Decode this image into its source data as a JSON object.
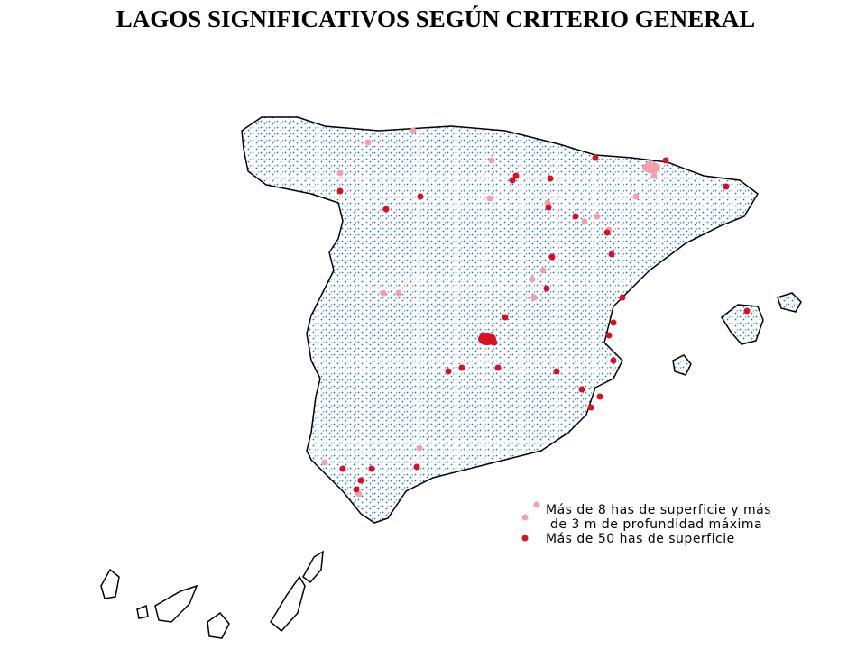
{
  "title": "LAGOS SIGNIFICATIVOS SEGÚN CRITERIO GENERAL",
  "legend": {
    "items": [
      {
        "lines": [
          "Más de 8 has de superficie y más",
          "de 3 m de profundidad máxima"
        ]
      },
      {
        "lines": [
          "Más de 50 has de superficie"
        ]
      }
    ]
  }
}
